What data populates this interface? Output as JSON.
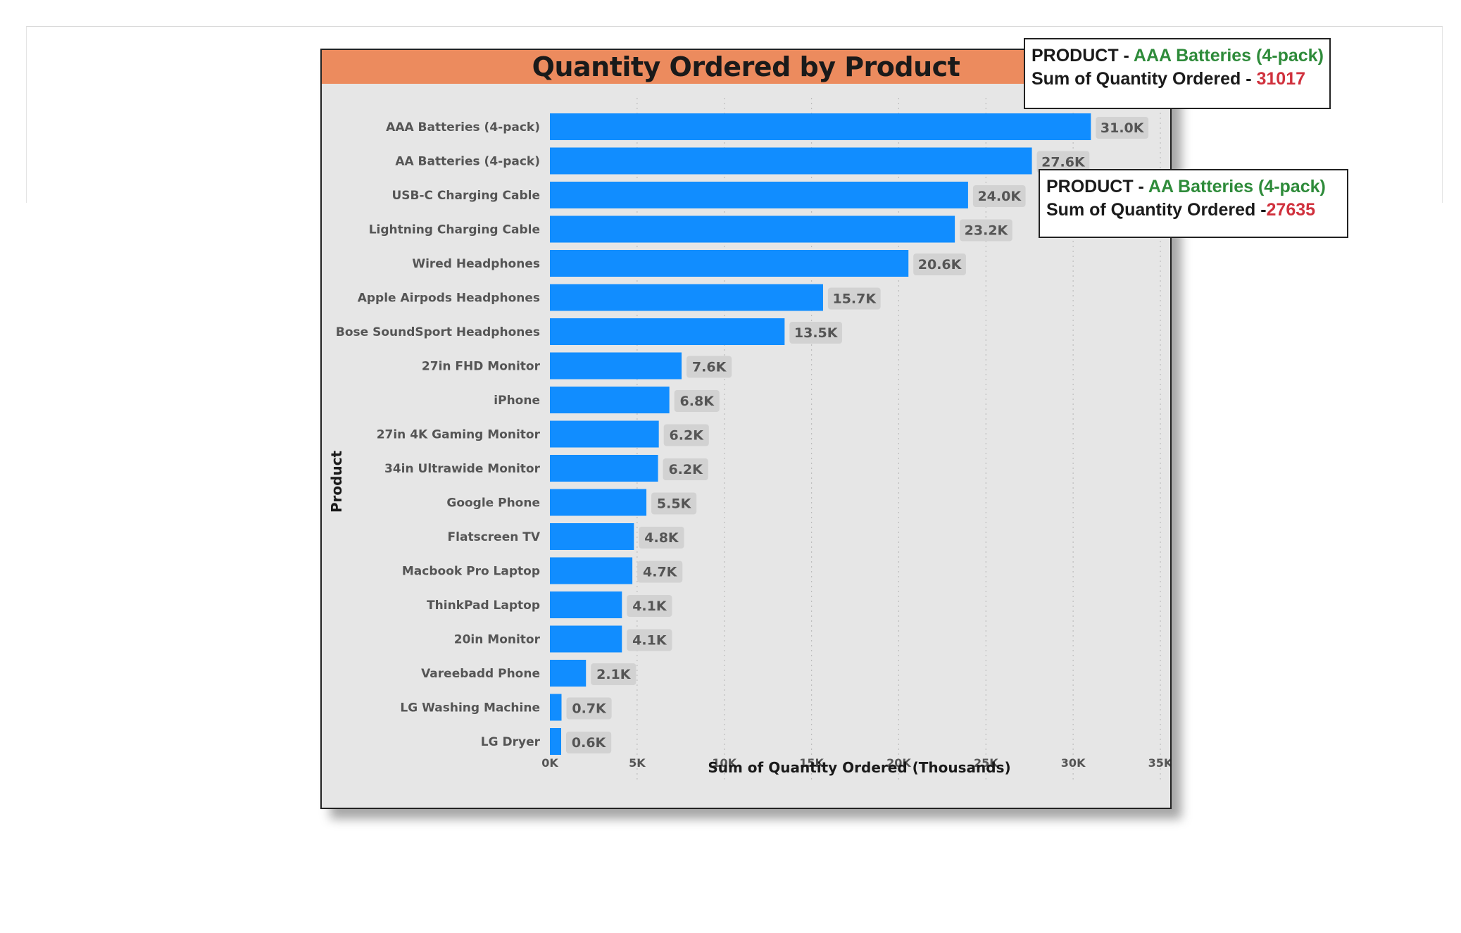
{
  "chart_data": {
    "type": "bar",
    "orientation": "horizontal",
    "title": "Quantity Ordered by Product",
    "xlabel": "Sum of Quantity Ordered (Thousands)",
    "ylabel": "Product",
    "xlim": [
      0,
      35000
    ],
    "x_ticks": [
      "0K",
      "5K",
      "10K",
      "15K",
      "20K",
      "25K",
      "30K",
      "35K"
    ],
    "grid": "vertical dotted",
    "categories": [
      "AAA Batteries (4-pack)",
      "AA Batteries (4-pack)",
      "USB-C Charging Cable",
      "Lightning Charging Cable",
      "Wired Headphones",
      "Apple Airpods Headphones",
      "Bose SoundSport Headphones",
      "27in FHD Monitor",
      "iPhone",
      "27in 4K Gaming Monitor",
      "34in Ultrawide Monitor",
      "Google Phone",
      "Flatscreen TV",
      "Macbook Pro Laptop",
      "ThinkPad Laptop",
      "20in Monitor",
      "Vareebadd Phone",
      "LG Washing Machine",
      "LG Dryer"
    ],
    "values": [
      31017,
      27635,
      23975,
      23217,
      20557,
      15661,
      13457,
      7550,
      6849,
      6244,
      6199,
      5532,
      4819,
      4728,
      4130,
      4129,
      2068,
      666,
      646
    ],
    "data_labels": [
      "31.0K",
      "27.6K",
      "24.0K",
      "23.2K",
      "20.6K",
      "15.7K",
      "13.5K",
      "7.6K",
      "6.8K",
      "6.2K",
      "6.2K",
      "5.5K",
      "4.8K",
      "4.7K",
      "4.1K",
      "4.1K",
      "2.1K",
      "0.7K",
      "0.6K"
    ],
    "bar_color": "#118dff",
    "title_band_color": "#ec8b5e"
  },
  "tooltips": [
    {
      "product_label": "PRODUCT - ",
      "product_value": "AAA Batteries (4-pack)",
      "measure_label": "Sum of Quantity Ordered - ",
      "measure_value": "31017"
    },
    {
      "product_label": "PRODUCT - ",
      "product_value": "AA Batteries (4-pack)",
      "measure_label": "Sum of Quantity Ordered -",
      "measure_value": "27635"
    }
  ]
}
